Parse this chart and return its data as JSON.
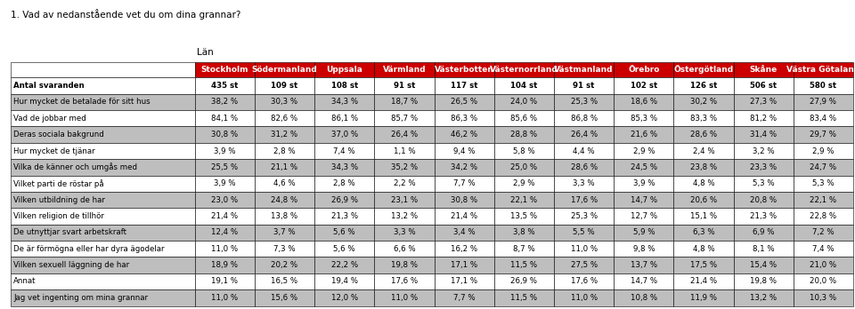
{
  "title": "1. Vad av nedanstående vet du om dina grannar?",
  "lan_label": "Län",
  "columns": [
    "Stockholm",
    "Södermanland",
    "Uppsala",
    "Värmland",
    "Västerbotten",
    "Västernorrland",
    "Västmanland",
    "Örebro",
    "Östergötland",
    "Skåne",
    "Västra Götaland"
  ],
  "header_bg": "#CC0000",
  "header_fg": "#FFFFFF",
  "row_bg_white": "#FFFFFF",
  "row_bg_gray": "#BEBEBE",
  "rows": [
    {
      "label": "Antal svaranden",
      "values": [
        "435 st",
        "109 st",
        "108 st",
        "91 st",
        "117 st",
        "104 st",
        "91 st",
        "102 st",
        "126 st",
        "506 st",
        "580 st"
      ],
      "bold": true,
      "bg": "white"
    },
    {
      "label": "Hur mycket de betalade för sitt hus",
      "values": [
        "38,2 %",
        "30,3 %",
        "34,3 %",
        "18,7 %",
        "26,5 %",
        "24,0 %",
        "25,3 %",
        "18,6 %",
        "30,2 %",
        "27,3 %",
        "27,9 %"
      ],
      "bold": false,
      "bg": "gray"
    },
    {
      "label": "Vad de jobbar med",
      "values": [
        "84,1 %",
        "82,6 %",
        "86,1 %",
        "85,7 %",
        "86,3 %",
        "85,6 %",
        "86,8 %",
        "85,3 %",
        "83,3 %",
        "81,2 %",
        "83,4 %"
      ],
      "bold": false,
      "bg": "white"
    },
    {
      "label": "Deras sociala bakgrund",
      "values": [
        "30,8 %",
        "31,2 %",
        "37,0 %",
        "26,4 %",
        "46,2 %",
        "28,8 %",
        "26,4 %",
        "21,6 %",
        "28,6 %",
        "31,4 %",
        "29,7 %"
      ],
      "bold": false,
      "bg": "gray"
    },
    {
      "label": "Hur mycket de tjänar",
      "values": [
        "3,9 %",
        "2,8 %",
        "7,4 %",
        "1,1 %",
        "9,4 %",
        "5,8 %",
        "4,4 %",
        "2,9 %",
        "2,4 %",
        "3,2 %",
        "2,9 %"
      ],
      "bold": false,
      "bg": "white"
    },
    {
      "label": "Vilka de känner och umgås med",
      "values": [
        "25,5 %",
        "21,1 %",
        "34,3 %",
        "35,2 %",
        "34,2 %",
        "25,0 %",
        "28,6 %",
        "24,5 %",
        "23,8 %",
        "23,3 %",
        "24,7 %"
      ],
      "bold": false,
      "bg": "gray"
    },
    {
      "label": "Vilket parti de röstar på",
      "values": [
        "3,9 %",
        "4,6 %",
        "2,8 %",
        "2,2 %",
        "7,7 %",
        "2,9 %",
        "3,3 %",
        "3,9 %",
        "4,8 %",
        "5,3 %",
        "5,3 %"
      ],
      "bold": false,
      "bg": "white"
    },
    {
      "label": "Vilken utbildning de har",
      "values": [
        "23,0 %",
        "24,8 %",
        "26,9 %",
        "23,1 %",
        "30,8 %",
        "22,1 %",
        "17,6 %",
        "14,7 %",
        "20,6 %",
        "20,8 %",
        "22,1 %"
      ],
      "bold": false,
      "bg": "gray"
    },
    {
      "label": "Vilken religion de tillhör",
      "values": [
        "21,4 %",
        "13,8 %",
        "21,3 %",
        "13,2 %",
        "21,4 %",
        "13,5 %",
        "25,3 %",
        "12,7 %",
        "15,1 %",
        "21,3 %",
        "22,8 %"
      ],
      "bold": false,
      "bg": "white"
    },
    {
      "label": "De utnyttjar svart arbetskraft",
      "values": [
        "12,4 %",
        "3,7 %",
        "5,6 %",
        "3,3 %",
        "3,4 %",
        "3,8 %",
        "5,5 %",
        "5,9 %",
        "6,3 %",
        "6,9 %",
        "7,2 %"
      ],
      "bold": false,
      "bg": "gray"
    },
    {
      "label": "De är förmögna eller har dyra ägodelar",
      "values": [
        "11,0 %",
        "7,3 %",
        "5,6 %",
        "6,6 %",
        "16,2 %",
        "8,7 %",
        "11,0 %",
        "9,8 %",
        "4,8 %",
        "8,1 %",
        "7,4 %"
      ],
      "bold": false,
      "bg": "white"
    },
    {
      "label": "Vilken sexuell läggning de har",
      "values": [
        "18,9 %",
        "20,2 %",
        "22,2 %",
        "19,8 %",
        "17,1 %",
        "11,5 %",
        "27,5 %",
        "13,7 %",
        "17,5 %",
        "15,4 %",
        "21,0 %"
      ],
      "bold": false,
      "bg": "gray"
    },
    {
      "label": "Annat",
      "values": [
        "19,1 %",
        "16,5 %",
        "19,4 %",
        "17,6 %",
        "17,1 %",
        "26,9 %",
        "17,6 %",
        "14,7 %",
        "21,4 %",
        "19,8 %",
        "20,0 %"
      ],
      "bold": false,
      "bg": "white"
    },
    {
      "label": "Jag vet ingenting om mina grannar",
      "values": [
        "11,0 %",
        "15,6 %",
        "12,0 %",
        "11,0 %",
        "7,7 %",
        "11,5 %",
        "11,0 %",
        "10,8 %",
        "11,9 %",
        "13,2 %",
        "10,3 %"
      ],
      "bold": false,
      "bg": "gray"
    }
  ],
  "font_size_title": 7.5,
  "font_size_header": 6.5,
  "font_size_cell": 6.2,
  "font_size_lan": 7.5
}
